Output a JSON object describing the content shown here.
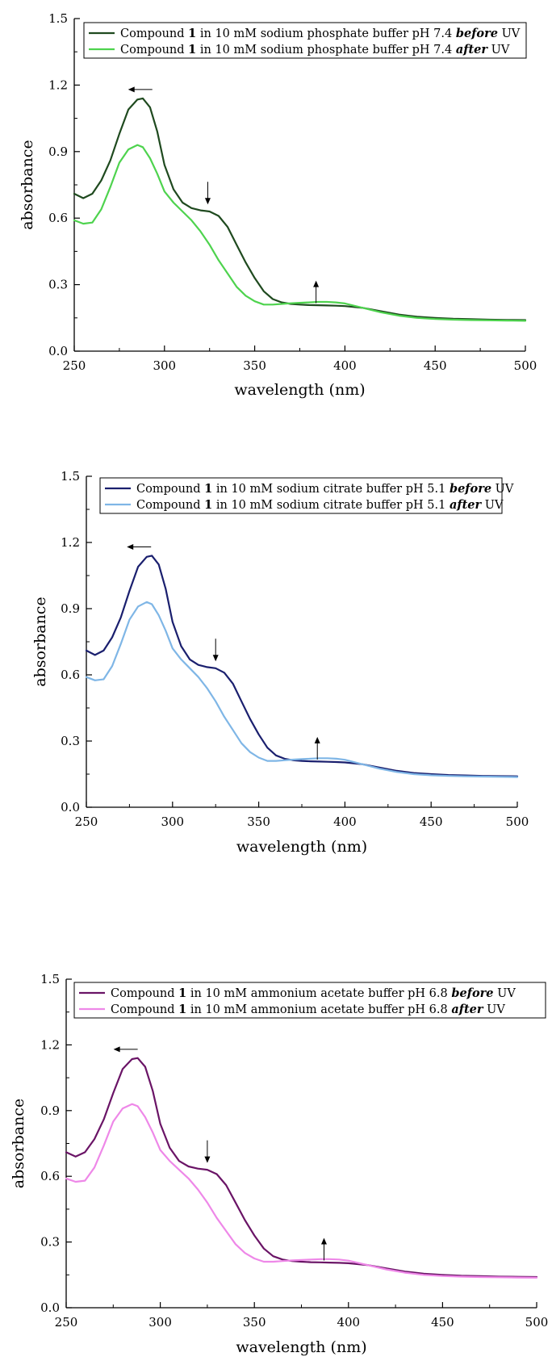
{
  "chart_data": [
    {
      "type": "line",
      "xlabel": "wavelength (nm)",
      "ylabel": "absorbance",
      "xlim": [
        250,
        500
      ],
      "ylim": [
        0.0,
        1.5
      ],
      "x_ticks": [
        250,
        300,
        350,
        400,
        450,
        500
      ],
      "x_tick_labels": [
        "250",
        "300",
        "350",
        "400",
        "450",
        "500"
      ],
      "y_ticks": [
        0.0,
        0.3,
        0.6,
        0.9,
        1.2,
        1.5
      ],
      "y_tick_labels": [
        "0.0",
        "0.3",
        "0.6",
        "0.9",
        "1.2",
        "1.5"
      ],
      "grid": false,
      "legend_position": "top",
      "legend": [
        {
          "pre": "Compound ",
          "num": "1",
          "mid": " in 10 mM sodium phosphate buffer pH 7.4 ",
          "em": "before",
          "post": " UV"
        },
        {
          "pre": "Compound ",
          "num": "1",
          "mid": " in 10 mM sodium phosphate buffer pH 7.4 ",
          "em": "after",
          "post": " UV"
        }
      ],
      "x": [
        250,
        255,
        260,
        265,
        270,
        275,
        280,
        285,
        288,
        292,
        296,
        300,
        305,
        310,
        315,
        320,
        325,
        330,
        335,
        340,
        345,
        350,
        355,
        360,
        365,
        370,
        375,
        380,
        385,
        390,
        395,
        400,
        410,
        420,
        430,
        440,
        450,
        460,
        470,
        480,
        490,
        500
      ],
      "series": [
        {
          "color": "#1f4a1f",
          "values": [
            0.71,
            0.69,
            0.71,
            0.77,
            0.86,
            0.98,
            1.09,
            1.135,
            1.14,
            1.1,
            0.99,
            0.84,
            0.73,
            0.67,
            0.645,
            0.635,
            0.63,
            0.61,
            0.56,
            0.48,
            0.4,
            0.33,
            0.27,
            0.235,
            0.22,
            0.213,
            0.21,
            0.208,
            0.207,
            0.206,
            0.205,
            0.203,
            0.195,
            0.18,
            0.165,
            0.155,
            0.15,
            0.146,
            0.144,
            0.142,
            0.141,
            0.14
          ]
        },
        {
          "color": "#4ed34e",
          "values": [
            0.59,
            0.575,
            0.58,
            0.64,
            0.74,
            0.85,
            0.91,
            0.93,
            0.92,
            0.87,
            0.8,
            0.72,
            0.67,
            0.63,
            0.59,
            0.54,
            0.48,
            0.41,
            0.35,
            0.29,
            0.25,
            0.225,
            0.21,
            0.21,
            0.213,
            0.216,
            0.218,
            0.22,
            0.222,
            0.222,
            0.22,
            0.215,
            0.195,
            0.175,
            0.16,
            0.15,
            0.145,
            0.142,
            0.14,
            0.139,
            0.138,
            0.137
          ]
        }
      ],
      "annotations": [
        "←",
        "↓",
        "↑"
      ]
    },
    {
      "type": "line",
      "xlabel": "wavelength (nm)",
      "ylabel": "absorbance",
      "xlim": [
        250,
        500
      ],
      "ylim": [
        0.0,
        1.5
      ],
      "x_ticks": [
        250,
        300,
        350,
        400,
        450,
        500
      ],
      "x_tick_labels": [
        "250",
        "300",
        "350",
        "400",
        "450",
        "500"
      ],
      "y_ticks": [
        0.0,
        0.3,
        0.6,
        0.9,
        1.2,
        1.5
      ],
      "y_tick_labels": [
        "0.0",
        "0.3",
        "0.6",
        "0.9",
        "1.2",
        "1.5"
      ],
      "grid": false,
      "legend_position": "top",
      "legend": [
        {
          "pre": "Compound ",
          "num": "1",
          "mid": " in 10 mM sodium citrate buffer pH 5.1 ",
          "em": "before",
          "post": " UV"
        },
        {
          "pre": "Compound ",
          "num": "1",
          "mid": " in 10 mM sodium citrate buffer pH 5.1 ",
          "em": "after",
          "post": " UV"
        }
      ],
      "x": [
        250,
        255,
        260,
        265,
        270,
        275,
        280,
        285,
        288,
        292,
        296,
        300,
        305,
        310,
        315,
        320,
        325,
        330,
        335,
        340,
        345,
        350,
        355,
        360,
        365,
        370,
        375,
        380,
        385,
        390,
        395,
        400,
        410,
        420,
        430,
        440,
        450,
        460,
        470,
        480,
        490,
        500
      ],
      "series": [
        {
          "color": "#1a1f6e",
          "values": [
            0.71,
            0.69,
            0.71,
            0.77,
            0.86,
            0.98,
            1.09,
            1.135,
            1.14,
            1.1,
            0.99,
            0.84,
            0.73,
            0.67,
            0.645,
            0.635,
            0.63,
            0.61,
            0.56,
            0.48,
            0.4,
            0.33,
            0.27,
            0.235,
            0.22,
            0.213,
            0.21,
            0.208,
            0.207,
            0.206,
            0.205,
            0.203,
            0.195,
            0.18,
            0.165,
            0.155,
            0.15,
            0.146,
            0.144,
            0.142,
            0.141,
            0.14
          ]
        },
        {
          "color": "#7fb6e6",
          "values": [
            0.59,
            0.575,
            0.58,
            0.64,
            0.74,
            0.85,
            0.91,
            0.93,
            0.92,
            0.87,
            0.8,
            0.72,
            0.67,
            0.63,
            0.59,
            0.54,
            0.48,
            0.41,
            0.35,
            0.29,
            0.25,
            0.225,
            0.21,
            0.21,
            0.213,
            0.216,
            0.218,
            0.22,
            0.222,
            0.222,
            0.22,
            0.215,
            0.195,
            0.175,
            0.16,
            0.15,
            0.145,
            0.142,
            0.14,
            0.139,
            0.138,
            0.137
          ]
        }
      ],
      "annotations": [
        "←",
        "↓",
        "↑"
      ]
    },
    {
      "type": "line",
      "xlabel": "wavelength (nm)",
      "ylabel": "absorbance",
      "xlim": [
        250,
        500
      ],
      "ylim": [
        0.0,
        1.5
      ],
      "x_ticks": [
        250,
        300,
        350,
        400,
        450,
        500
      ],
      "x_tick_labels": [
        "250",
        "300",
        "350",
        "400",
        "450",
        "500"
      ],
      "y_ticks": [
        0.0,
        0.3,
        0.6,
        0.9,
        1.2,
        1.5
      ],
      "y_tick_labels": [
        "0.0",
        "0.3",
        "0.6",
        "0.9",
        "1.2",
        "1.5"
      ],
      "grid": false,
      "legend_position": "top",
      "legend": [
        {
          "pre": "Compound ",
          "num": "1",
          "mid": " in 10 mM ammonium acetate buffer pH 6.8 ",
          "em": "before",
          "post": " UV"
        },
        {
          "pre": "Compound ",
          "num": "1",
          "mid": " in 10 mM ammonium acetate buffer pH 6.8 ",
          "em": "after",
          "post": " UV"
        }
      ],
      "x": [
        250,
        255,
        260,
        265,
        270,
        275,
        280,
        285,
        288,
        292,
        296,
        300,
        305,
        310,
        315,
        320,
        325,
        330,
        335,
        340,
        345,
        350,
        355,
        360,
        365,
        370,
        375,
        380,
        385,
        390,
        395,
        400,
        410,
        420,
        430,
        440,
        450,
        460,
        470,
        480,
        490,
        500
      ],
      "series": [
        {
          "color": "#6a1466",
          "values": [
            0.71,
            0.69,
            0.71,
            0.77,
            0.86,
            0.98,
            1.09,
            1.135,
            1.14,
            1.1,
            0.99,
            0.84,
            0.73,
            0.67,
            0.645,
            0.635,
            0.63,
            0.61,
            0.56,
            0.48,
            0.4,
            0.33,
            0.27,
            0.235,
            0.22,
            0.213,
            0.21,
            0.208,
            0.207,
            0.206,
            0.205,
            0.203,
            0.195,
            0.18,
            0.165,
            0.155,
            0.15,
            0.146,
            0.144,
            0.142,
            0.141,
            0.14
          ]
        },
        {
          "color": "#ee88e8",
          "values": [
            0.59,
            0.575,
            0.58,
            0.64,
            0.74,
            0.85,
            0.91,
            0.93,
            0.92,
            0.87,
            0.8,
            0.72,
            0.67,
            0.63,
            0.59,
            0.54,
            0.48,
            0.41,
            0.35,
            0.29,
            0.25,
            0.225,
            0.21,
            0.21,
            0.213,
            0.216,
            0.218,
            0.22,
            0.222,
            0.222,
            0.22,
            0.215,
            0.195,
            0.175,
            0.16,
            0.15,
            0.145,
            0.142,
            0.14,
            0.139,
            0.138,
            0.137
          ]
        }
      ],
      "annotations": [
        "←",
        "↓",
        "↑"
      ]
    }
  ]
}
